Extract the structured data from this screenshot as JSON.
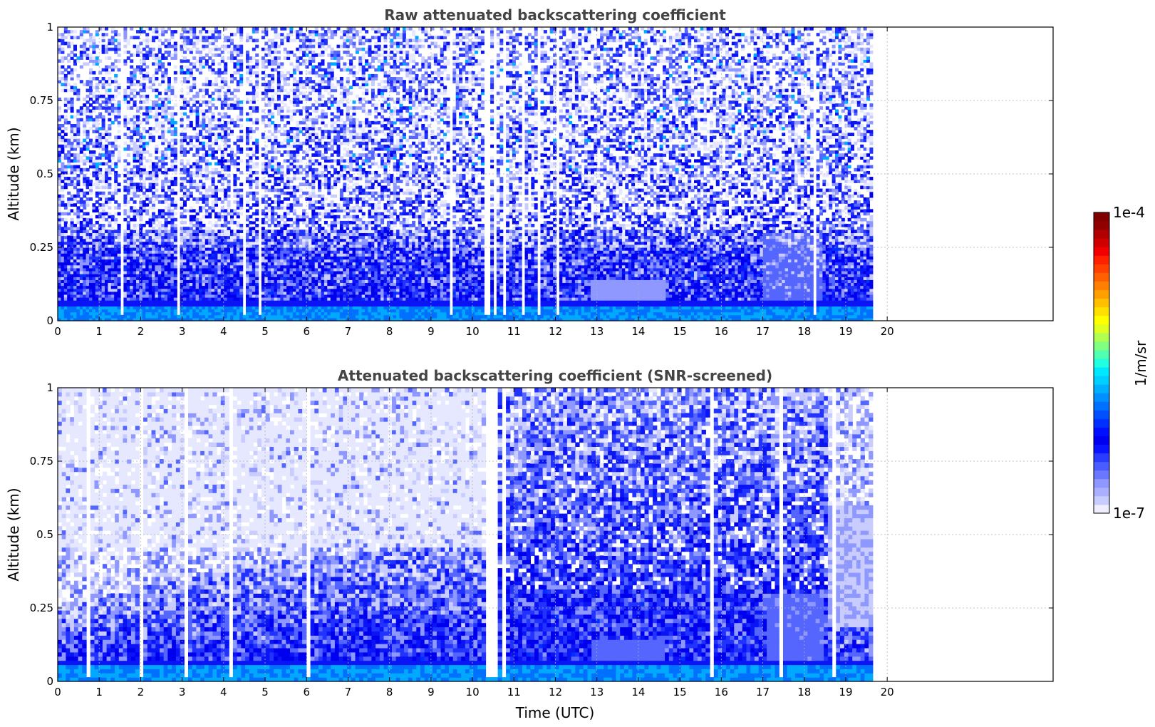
{
  "chart_data": [
    {
      "type": "heatmap",
      "title": "Raw attenuated backscattering coefficient",
      "xlabel": "",
      "ylabel": "Altitude (km)",
      "xlim": [
        0,
        24
      ],
      "ylim": [
        0,
        1
      ],
      "x_tick_labels": [
        "0",
        "1",
        "2",
        "3",
        "4",
        "5",
        "6",
        "7",
        "8",
        "9",
        "10",
        "11",
        "12",
        "13",
        "14",
        "15",
        "16",
        "17",
        "18",
        "19",
        "20"
      ],
      "y_tick_labels": [
        "0",
        "0.25",
        "0.5",
        "0.75",
        "1"
      ],
      "data_time_range": [
        0,
        19.65
      ],
      "grid": true,
      "description_rows": [
        {
          "altitude": [
            0.0,
            0.06
          ],
          "level": "high"
        },
        {
          "altitude": [
            0.06,
            0.25
          ],
          "level": "medium"
        },
        {
          "altitude": [
            0.25,
            1.0
          ],
          "level": "noisy-low"
        }
      ]
    },
    {
      "type": "heatmap",
      "title": "Attenuated backscattering coefficient (SNR-screened)",
      "xlabel": "Time (UTC)",
      "ylabel": "Altitude (km)",
      "xlim": [
        0,
        24
      ],
      "ylim": [
        0,
        1
      ],
      "x_tick_labels": [
        "0",
        "1",
        "2",
        "3",
        "4",
        "5",
        "6",
        "7",
        "8",
        "9",
        "10",
        "11",
        "12",
        "13",
        "14",
        "15",
        "16",
        "17",
        "18",
        "19",
        "20"
      ],
      "y_tick_labels": [
        "0",
        "0.25",
        "0.5",
        "0.75",
        "1"
      ],
      "data_time_range": [
        0,
        19.65
      ],
      "grid": true
    }
  ],
  "colorbar": {
    "max_label": "1e-4",
    "min_label": "1e-7",
    "unit_label": "1/m/sr",
    "colormap": "jet-with-white-low",
    "scale": "log"
  }
}
